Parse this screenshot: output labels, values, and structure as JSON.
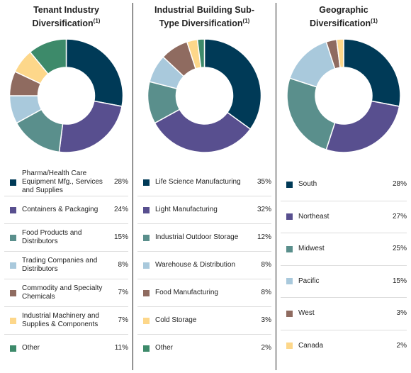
{
  "chart_data": [
    {
      "type": "donut",
      "title": "Tenant Industry Diversification",
      "footnote": "(1)",
      "categories": [
        "Pharma/Health Care Equipment Mfg., Services and Supplies",
        "Containers & Packaging",
        "Food Products and Distributors",
        "Trading Companies and Distributors",
        "Commodity and Specialty Chemicals",
        "Industrial Machinery and Supplies & Components",
        "Other"
      ],
      "values": [
        28,
        24,
        15,
        8,
        7,
        7,
        11
      ],
      "value_labels": [
        "28%",
        "24%",
        "15%",
        "8%",
        "7%",
        "7%",
        "11%"
      ],
      "colors": [
        "#003a57",
        "#584f8f",
        "#5a8f8c",
        "#a9c9dc",
        "#8f6b60",
        "#fdd78a",
        "#3d8a6a"
      ]
    },
    {
      "type": "donut",
      "title": "Industrial Building Sub-Type Diversification",
      "footnote": "(1)",
      "categories": [
        "Life Science Manufacturing",
        "Light Manufacturing",
        "Industrial Outdoor Storage",
        "Warehouse & Distribution",
        "Food Manufacturing",
        "Cold Storage",
        "Other"
      ],
      "values": [
        35,
        32,
        12,
        8,
        8,
        3,
        2
      ],
      "value_labels": [
        "35%",
        "32%",
        "12%",
        "8%",
        "8%",
        "3%",
        "2%"
      ],
      "colors": [
        "#003a57",
        "#584f8f",
        "#5a8f8c",
        "#a9c9dc",
        "#8f6b60",
        "#fdd78a",
        "#3d8a6a"
      ]
    },
    {
      "type": "donut",
      "title": "Geographic Diversification",
      "footnote": "(1)",
      "categories": [
        "South",
        "Northeast",
        "Midwest",
        "Pacific",
        "West",
        "Canada"
      ],
      "values": [
        28,
        27,
        25,
        15,
        3,
        2
      ],
      "value_labels": [
        "28%",
        "27%",
        "25%",
        "15%",
        "3%",
        "2%"
      ],
      "colors": [
        "#003a57",
        "#584f8f",
        "#5a8f8c",
        "#a9c9dc",
        "#8f6b60",
        "#fdd78a"
      ]
    }
  ]
}
